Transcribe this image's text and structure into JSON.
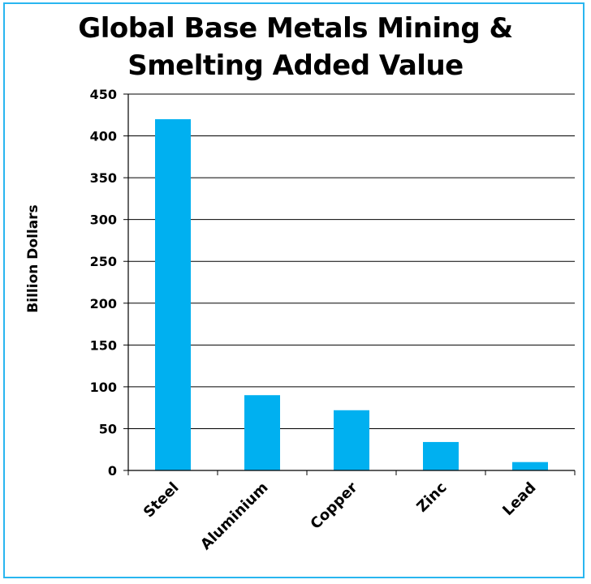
{
  "chart_data": {
    "type": "bar",
    "title": "Global Base Metals Mining &\nSmelting Added Value",
    "xlabel": "",
    "ylabel": "Billion Dollars",
    "categories": [
      "Steel",
      "Aluminium",
      "Copper",
      "Zinc",
      "Lead"
    ],
    "values": [
      420,
      90,
      72,
      34,
      10
    ],
    "ylim": [
      0,
      450
    ],
    "yticks": [
      0,
      50,
      100,
      150,
      200,
      250,
      300,
      350,
      400,
      450
    ],
    "grid": true,
    "bar_color": "#00b0f0",
    "frame_color": "#29b6f0"
  }
}
